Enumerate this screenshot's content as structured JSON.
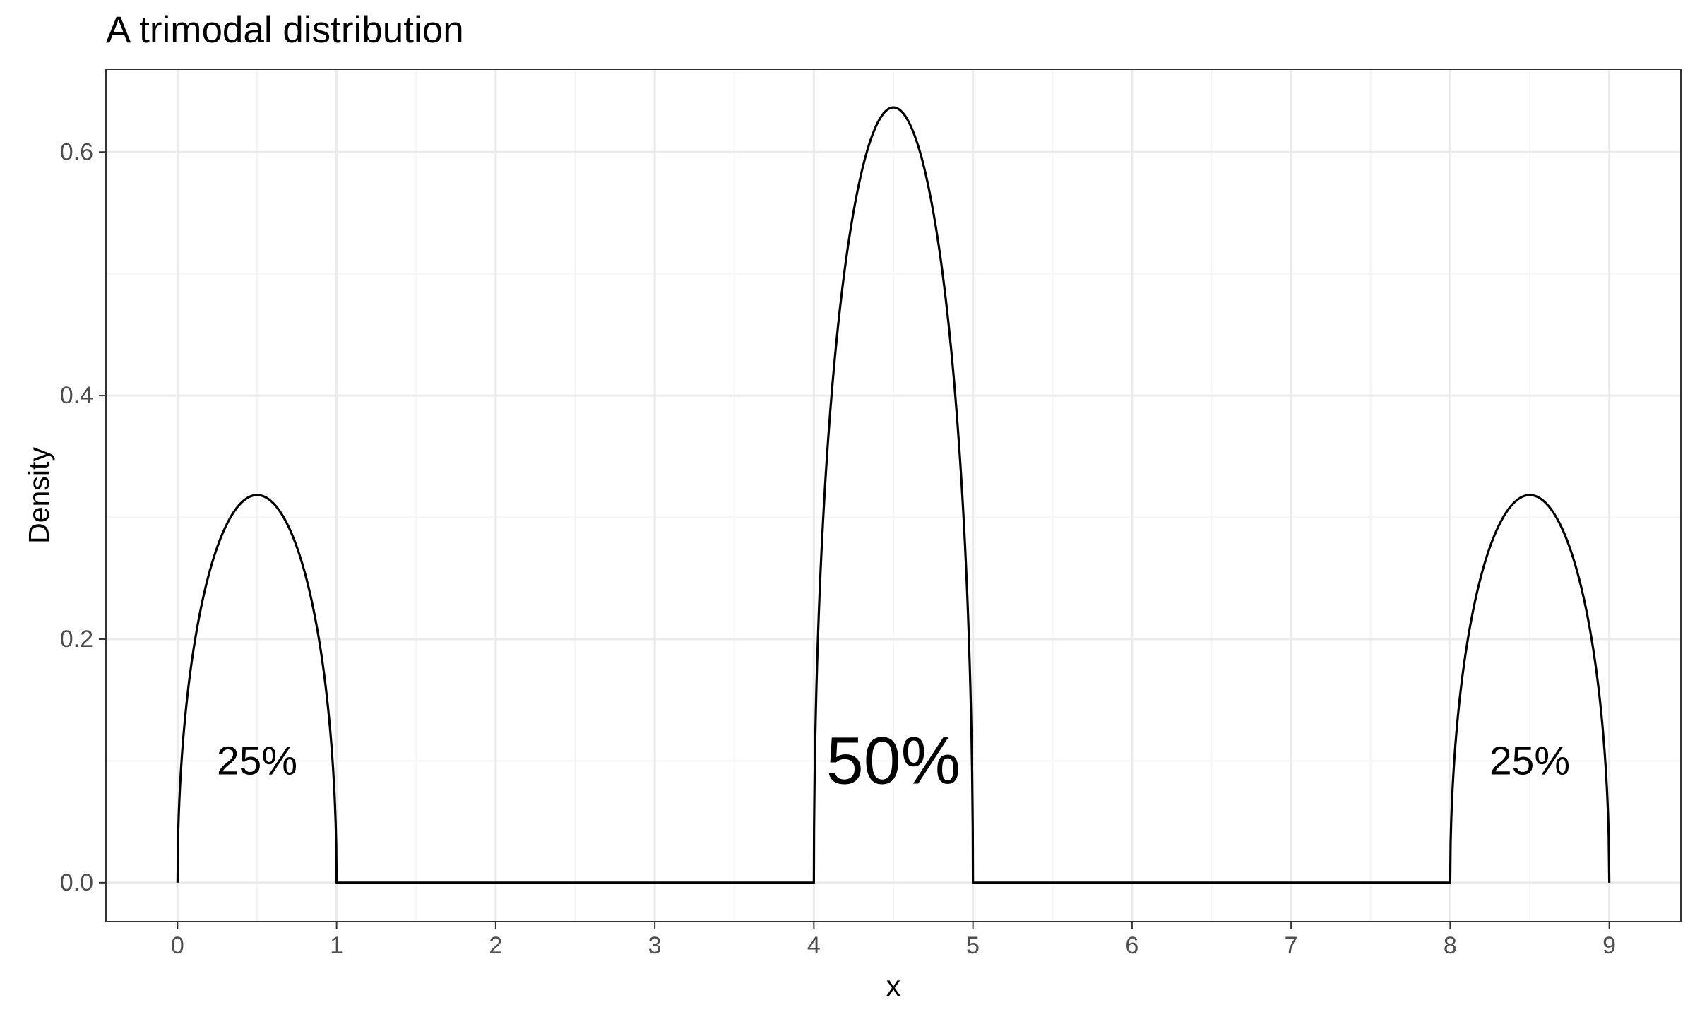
{
  "colors": {
    "background": "#ffffff",
    "panel_border": "#333333",
    "grid_major": "#ebebeb",
    "grid_minor": "#f5f5f5",
    "line": "#000000",
    "tick_text": "#4d4d4d"
  },
  "chart_data": {
    "type": "line",
    "title": "A trimodal distribution",
    "xlabel": "x",
    "ylabel": "Density",
    "xlim": [
      -0.45,
      9.45
    ],
    "ylim": [
      -0.032,
      0.668
    ],
    "grid": true,
    "x_ticks": [
      0,
      1,
      2,
      3,
      4,
      5,
      6,
      7,
      8,
      9
    ],
    "x_tick_labels": [
      "0",
      "1",
      "2",
      "3",
      "4",
      "5",
      "6",
      "7",
      "8",
      "9"
    ],
    "y_ticks": [
      0.0,
      0.2,
      0.4,
      0.6
    ],
    "y_tick_labels": [
      "0.0",
      "0.2",
      "0.4",
      "0.6"
    ],
    "series": [
      {
        "components": [
          {
            "from": 0,
            "to": 1,
            "weight": 0.25
          },
          {
            "from": 4,
            "to": 5,
            "weight": 0.5
          },
          {
            "from": 8,
            "to": 9,
            "weight": 0.25
          }
        ],
        "x_range": [
          0,
          9
        ],
        "peak_values": [
          0.318,
          0.637,
          0.318
        ]
      }
    ],
    "annotations": [
      {
        "x": 0.5,
        "y": 0.1,
        "text": "25%",
        "size": "small"
      },
      {
        "x": 4.5,
        "y": 0.1,
        "text": "50%",
        "size": "large"
      },
      {
        "x": 8.5,
        "y": 0.1,
        "text": "25%",
        "size": "small"
      }
    ]
  }
}
